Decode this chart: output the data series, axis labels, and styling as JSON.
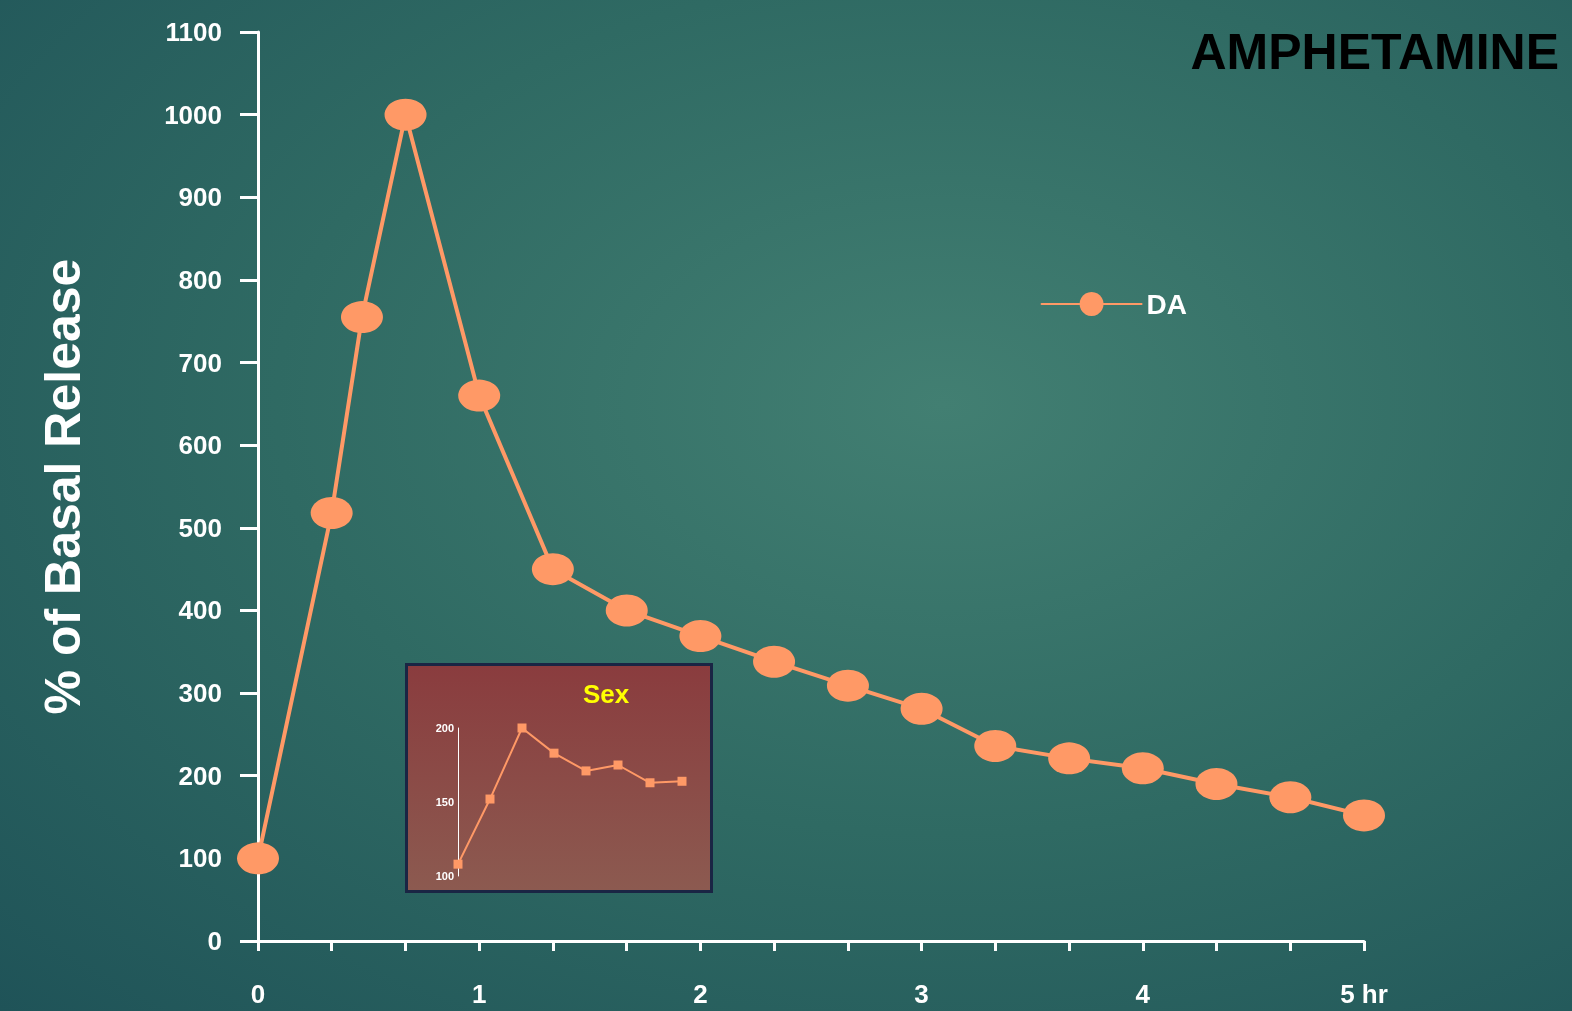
{
  "chart_data": [
    {
      "type": "line",
      "title": "AMPHETAMINE",
      "ylabel": "% of Basal Release",
      "x": [
        0,
        0.333,
        0.47,
        0.667,
        1,
        1.333,
        1.667,
        2,
        2.333,
        2.667,
        3,
        3.333,
        3.667,
        4,
        4.333,
        4.667,
        5
      ],
      "series": [
        {
          "name": "DA",
          "color": "#ff9966",
          "values": [
            100,
            518,
            755,
            1000,
            660,
            450,
            400,
            369,
            338,
            309,
            281,
            236,
            221,
            209,
            190,
            174,
            152
          ]
        }
      ],
      "xlim": [
        0,
        5
      ],
      "xticks": [
        0,
        {
          "value": 0.333,
          "label": null
        },
        {
          "value": 0.667,
          "label": null
        },
        1,
        {
          "value": 1.333,
          "label": null
        },
        {
          "value": 1.667,
          "label": null
        },
        2,
        {
          "value": 2.333,
          "label": null
        },
        {
          "value": 2.667,
          "label": null
        },
        3,
        {
          "value": 3.333,
          "label": null
        },
        {
          "value": 3.667,
          "label": null
        },
        4,
        {
          "value": 4.333,
          "label": null
        },
        {
          "value": 4.667,
          "label": null
        },
        {
          "value": 5,
          "label": "5 hr"
        }
      ],
      "ylim": [
        0,
        1100
      ],
      "yticks": [
        0,
        100,
        200,
        300,
        400,
        500,
        600,
        700,
        800,
        900,
        1000,
        1100
      ],
      "grid": false,
      "legend": "top right",
      "marker": "circle",
      "line_style": "solid"
    },
    {
      "type": "line",
      "title": "Sex",
      "categories": [
        null,
        null,
        null,
        null,
        null,
        null,
        null,
        null
      ],
      "series": [
        {
          "color": "#ff9966",
          "values": [
            108,
            152,
            200,
            183,
            171,
            175,
            163,
            164
          ]
        }
      ],
      "ylim": [
        100,
        200
      ],
      "yticks": [
        100,
        150,
        200
      ],
      "grid": false,
      "legend": false,
      "marker": "square",
      "line_style": "solid",
      "tick_labels": "y"
    }
  ]
}
